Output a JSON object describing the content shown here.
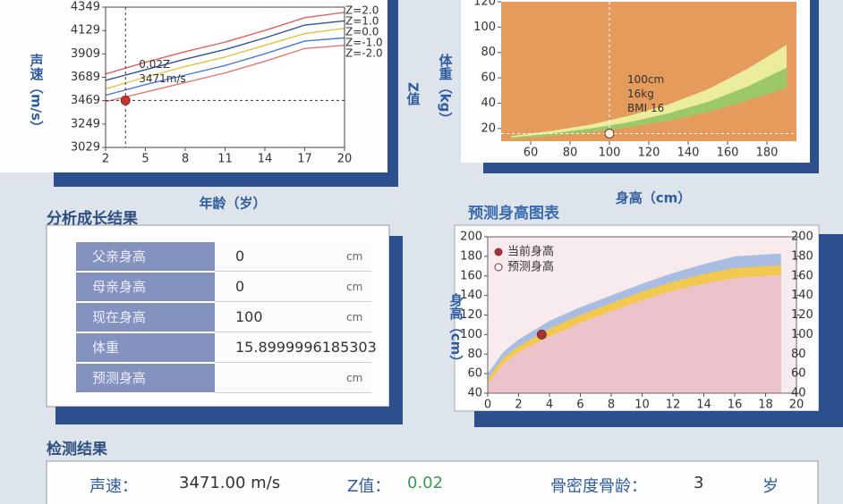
{
  "chart_data": [
    {
      "type": "line",
      "y_label": "声速（m/s）",
      "x_label": "年龄（岁）",
      "y2_label": "Z值",
      "xlim": [
        2,
        20
      ],
      "xticks": [
        2,
        5,
        8,
        11,
        14,
        17,
        20
      ],
      "ylim": [
        3029,
        4349
      ],
      "yticks": [
        3029,
        3249,
        3469,
        3689,
        3909,
        4129,
        4349
      ],
      "x": [
        2,
        5,
        8,
        11,
        14,
        17,
        20
      ],
      "series": [
        {
          "name": "Z=2.0",
          "color": "#e06060",
          "values": [
            3720,
            3830,
            3930,
            4020,
            4130,
            4250,
            4300
          ]
        },
        {
          "name": "Z=1.0",
          "color": "#30509f",
          "values": [
            3660,
            3760,
            3860,
            3950,
            4060,
            4180,
            4220
          ]
        },
        {
          "name": "Z=0.0",
          "color": "#e6c040",
          "values": [
            3580,
            3690,
            3790,
            3880,
            3990,
            4100,
            4150
          ]
        },
        {
          "name": "Z=-1.0",
          "color": "#4a78d8",
          "values": [
            3520,
            3620,
            3710,
            3800,
            3910,
            4030,
            4060
          ]
        },
        {
          "name": "Z=-2.0",
          "color": "#e07878",
          "values": [
            3460,
            3550,
            3640,
            3730,
            3840,
            3960,
            3990
          ]
        }
      ],
      "points": [
        {
          "x": 3.5,
          "y": 3471,
          "color": "#c8322b"
        }
      ],
      "annotations": [
        "0.02Z",
        "3471m/s"
      ]
    },
    {
      "type": "area",
      "y_label": "体重（kg）",
      "x_label": "身高（cm）",
      "background": "#e59b5c",
      "xlim": [
        45,
        195
      ],
      "xticks": [
        60,
        80,
        100,
        120,
        140,
        160,
        180
      ],
      "ylim": [
        10,
        120
      ],
      "yticks": [
        20,
        40,
        60,
        80,
        100,
        120
      ],
      "x": [
        50,
        70,
        90,
        110,
        130,
        150,
        170,
        190
      ],
      "series": [
        {
          "color": "#e59b5c",
          "values": [
            12,
            14,
            17,
            21,
            26,
            33,
            42,
            52
          ]
        },
        {
          "color": "#9dc86a",
          "values": [
            13,
            16,
            20,
            25,
            32,
            41,
            53,
            68
          ]
        },
        {
          "color": "#ecec9e",
          "values": [
            14,
            18,
            23,
            30,
            39,
            51,
            67,
            86
          ]
        }
      ],
      "points": [
        {
          "x": 100,
          "y": 16,
          "color": "#f4f4e0"
        }
      ],
      "annotations": [
        "100cm",
        "16kg",
        "BMI 16"
      ]
    },
    {
      "type": "area",
      "title": "预测身高图表",
      "y_label": "身高（cm）",
      "background": "#f7ebee",
      "xlim": [
        0,
        20
      ],
      "xticks": [
        0,
        2,
        4,
        6,
        8,
        10,
        12,
        14,
        16,
        18,
        20
      ],
      "ylim": [
        40,
        200
      ],
      "yticks": [
        40,
        60,
        80,
        100,
        120,
        140,
        160,
        180,
        200
      ],
      "y2lim": [
        40,
        200
      ],
      "y2ticks": [
        40,
        60,
        80,
        100,
        120,
        140,
        160,
        180,
        200
      ],
      "x": [
        0,
        1,
        2,
        4,
        6,
        8,
        10,
        12,
        14,
        16,
        18,
        19
      ],
      "series": [
        {
          "color": "#edc3cb",
          "values": [
            50,
            70,
            82,
            98,
            112,
            124,
            135,
            145,
            152,
            158,
            160,
            161
          ]
        },
        {
          "color": "#f2c94e",
          "values": [
            55,
            76,
            88,
            106,
            120,
            132,
            144,
            154,
            162,
            168,
            170,
            171
          ]
        },
        {
          "color": "#a9bde3",
          "values": [
            60,
            82,
            95,
            114,
            128,
            140,
            152,
            163,
            172,
            180,
            182,
            183
          ]
        }
      ],
      "legend": [
        {
          "name": "当前身高",
          "color": "#a8323a"
        },
        {
          "name": "预测身高",
          "color": "#ffffff"
        }
      ],
      "points": [
        {
          "x": 3.5,
          "y": 100,
          "color": "#a8323a"
        }
      ]
    }
  ],
  "analysis": {
    "title": "分析成长结果",
    "rows": [
      {
        "label": "父亲身高",
        "value": "0",
        "unit": "cm"
      },
      {
        "label": "母亲身高",
        "value": "0",
        "unit": "cm"
      },
      {
        "label": "现在身高",
        "value": "100",
        "unit": "cm"
      },
      {
        "label": "体重",
        "value": "15.8999996185303"
      },
      {
        "label": "预测身高",
        "unit": "cm"
      }
    ]
  },
  "detection": {
    "title": "检测结果",
    "items": [
      {
        "label": "声速：",
        "value": "3471.00 m/s"
      },
      {
        "label": "Z值：",
        "value": "0.02"
      },
      {
        "label": "骨密度骨龄：",
        "value": "3",
        "unit": "岁"
      }
    ]
  }
}
